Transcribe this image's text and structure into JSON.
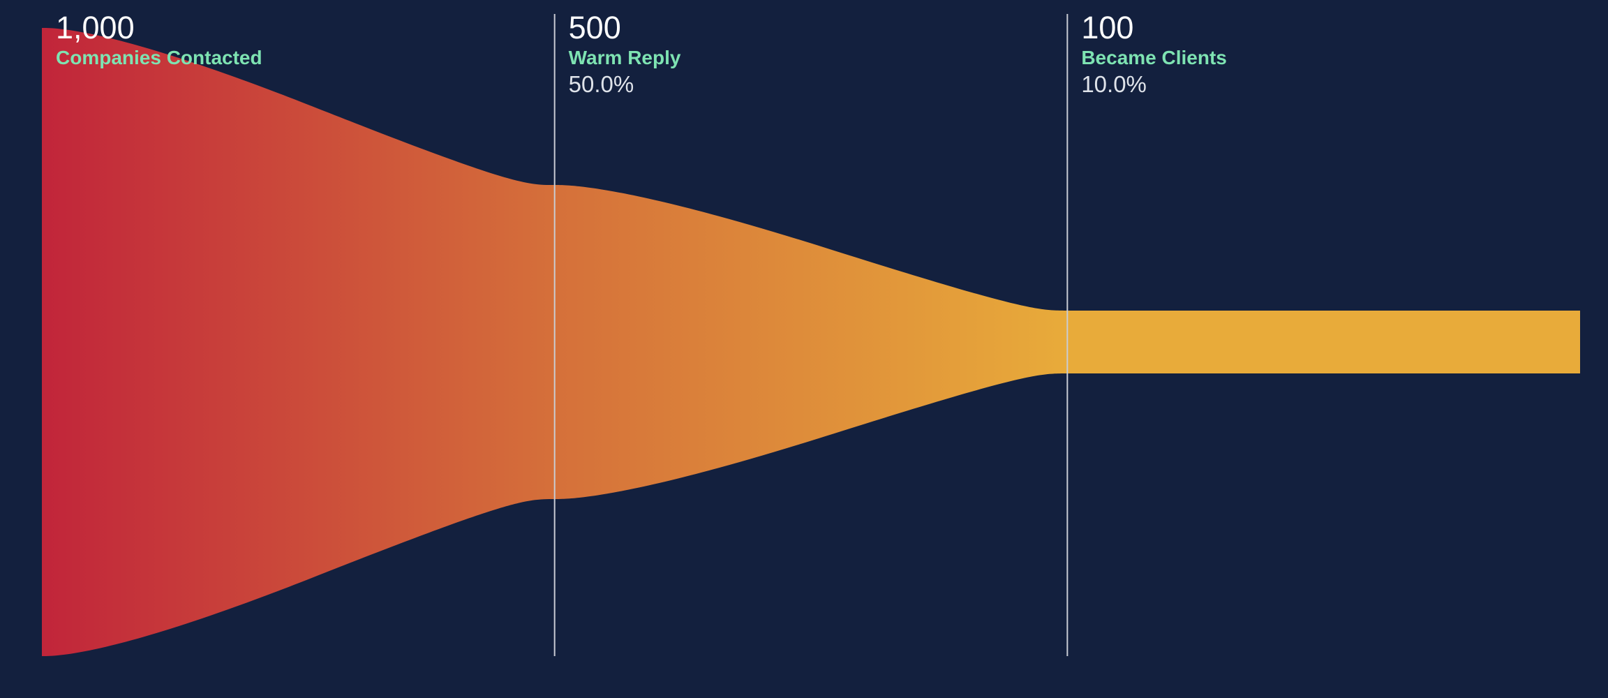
{
  "chart_data": {
    "type": "funnel",
    "stages": [
      {
        "name": "Companies Contacted",
        "value": 1000,
        "value_label": "1,000",
        "percent_label": ""
      },
      {
        "name": "Warm Reply",
        "value": 500,
        "value_label": "500",
        "percent_label": "50.0%"
      },
      {
        "name": "Became Clients",
        "value": 100,
        "value_label": "100",
        "percent_label": "10.0%"
      }
    ],
    "colors": {
      "background": "#13203e",
      "gradient_start": "#c1253a",
      "gradient_mid": "#d5703a",
      "gradient_end": "#e8ab3a",
      "stage_name": "#7ee3b2",
      "divider": "#c9ccd4"
    }
  }
}
